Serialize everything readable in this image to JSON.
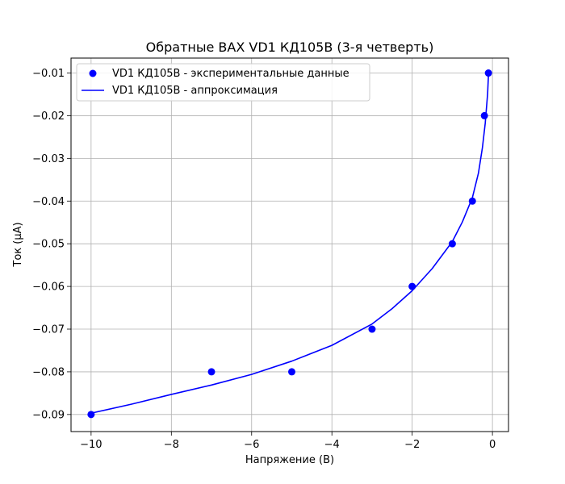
{
  "chart_data": {
    "type": "scatter",
    "title": "Обратные ВАХ VD1 КД105В (3-я четверть)",
    "xlabel": "Напряжение (В)",
    "ylabel": "Ток (μA)",
    "xlim": [
      -10.5,
      0.4
    ],
    "ylim": [
      -0.094,
      -0.0065
    ],
    "x_ticks": [
      -10,
      -8,
      -6,
      -4,
      -2,
      0
    ],
    "x_tick_labels": [
      "−10",
      "−8",
      "−6",
      "−4",
      "−2",
      "0"
    ],
    "y_ticks": [
      -0.09,
      -0.08,
      -0.07,
      -0.06,
      -0.05,
      -0.04,
      -0.03,
      -0.02,
      -0.01
    ],
    "y_tick_labels": [
      "−0.09",
      "−0.08",
      "−0.07",
      "−0.06",
      "−0.05",
      "−0.04",
      "−0.03",
      "−0.02",
      "−0.01"
    ],
    "grid": true,
    "legend_position": "top-left",
    "colors": {
      "series": "#0000ff",
      "grid": "#b0b0b0"
    },
    "series": [
      {
        "name": "VD1 КД105В - экспериментальные данные",
        "kind": "points",
        "x": [
          -10,
          -7,
          -5,
          -3,
          -2,
          -1,
          -0.5,
          -0.2,
          -0.1
        ],
        "y": [
          -0.09,
          -0.08,
          -0.08,
          -0.07,
          -0.06,
          -0.05,
          -0.04,
          -0.02,
          -0.01
        ]
      },
      {
        "name": "VD1 КД105В - аппроксимация",
        "kind": "line",
        "x": [
          -10,
          -9,
          -8,
          -7,
          -6,
          -5,
          -4,
          -3,
          -2.5,
          -2,
          -1.5,
          -1,
          -0.75,
          -0.5,
          -0.35,
          -0.25,
          -0.18,
          -0.12,
          -0.1
        ],
        "y": [
          -0.0897,
          -0.0876,
          -0.0853,
          -0.0831,
          -0.0806,
          -0.0775,
          -0.0738,
          -0.0688,
          -0.0652,
          -0.061,
          -0.0558,
          -0.0495,
          -0.0449,
          -0.0392,
          -0.0335,
          -0.0275,
          -0.0218,
          -0.0148,
          -0.0105
        ]
      }
    ]
  }
}
